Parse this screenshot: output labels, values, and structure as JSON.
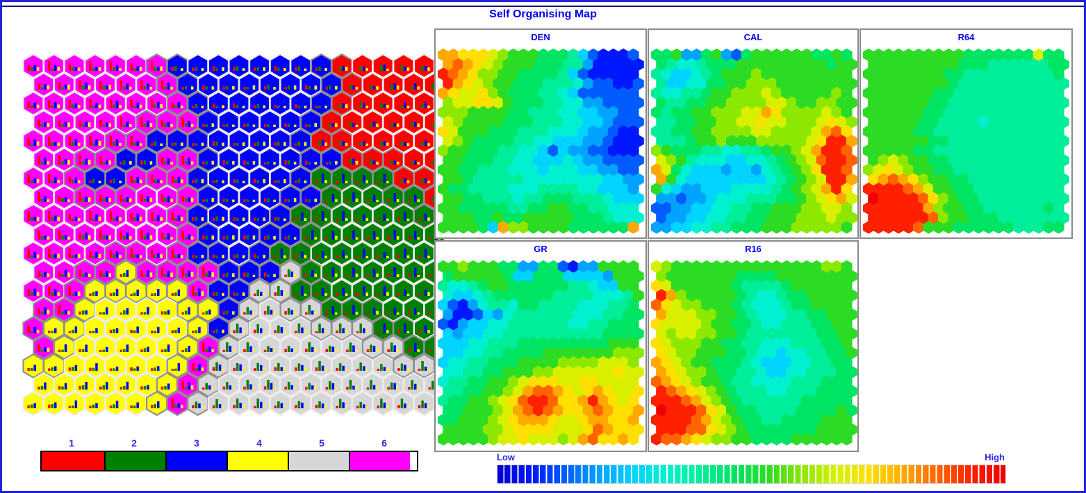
{
  "window": {
    "title": "Self Organising Map"
  },
  "chart_data": {
    "type": "heatmap",
    "title": "Self Organising Map",
    "grid": {
      "cols": 20,
      "rows": 19,
      "layout": "hex-odd-r"
    },
    "cluster_map": {
      "clusters": [
        {
          "id": "1",
          "label": "1",
          "color": "#ff0000"
        },
        {
          "id": "2",
          "label": "2",
          "color": "#008000"
        },
        {
          "id": "3",
          "label": "3",
          "color": "#0000ff"
        },
        {
          "id": "4",
          "label": "4",
          "color": "#ffff00"
        },
        {
          "id": "5",
          "label": "5",
          "color": "#d6d6d6"
        },
        {
          "id": "6",
          "label": "6",
          "color": "#ff00ff"
        }
      ],
      "rows": [
        "66666663333333311111",
        "66666663333333311111",
        "66666666333333311111",
        "66666666333333111111",
        "66666633333333111111",
        "66663366333333311111",
        "66633666333333222211",
        "66666666333333222221",
        "66666666333332222222",
        "66666666333332222222",
        "66666666333322222222",
        "66664666633352222222",
        "66644444633552222222",
        "66444444435555222222",
        "64444444435555555222",
        "64444444655555555522",
        "44444444655555555555",
        "44444446555555555555",
        "44444446555555555555"
      ]
    },
    "glyph": {
      "bar_colors": [
        "#ff0000",
        "#008000",
        "#0000ff",
        "#ffff00"
      ],
      "bar_profiles": {
        "1": [
          0.25,
          0.5,
          0.55,
          0.35
        ],
        "2": [
          0.3,
          0.2,
          0.95,
          0.3
        ],
        "3": [
          0.4,
          0.4,
          0.2,
          0.35
        ],
        "4": [
          0.3,
          0.35,
          0.65,
          0.2
        ],
        "5": [
          0.3,
          0.95,
          0.55,
          0.25
        ],
        "6": [
          0.95,
          0.35,
          0.6,
          0.4
        ]
      }
    },
    "component_planes": [
      {
        "name": "DEN",
        "rows": [
          "ccbbba98887776421112",
          "cdcba988877766311111",
          "edcb9988777764211111",
          "ecba9887776665322112",
          "cbaab987776654222222",
          "9aabba87776655332222",
          "99988887766655443322",
          "a9888877766655443222",
          "ba888777666555433211",
          "a9877776655444332111",
          "98877766554243322111",
          "88777665544454332222",
          "88776665554555443322",
          "88766666555555554433",
          "87766665556666554443",
          "88776665667776665444",
          "88777776677887766555",
          "88877877888887776555",
          "888874c998888777777c"
        ]
      },
      {
        "name": "CAL",
        "rows": [
          "77833783278888887787",
          "76556777888888888788",
          "65445678889888888888",
          "64455778899988888888",
          "65566788999a98888898",
          "76677889999aa9889988",
          "767788999aacb9999a98",
          "66778899aabaa999aba9",
          "6677889999aa9999acdb",
          "666788988899999abeec",
          "987776655667889aceed",
          "a98655544556789adeed",
          "ca75444344356789beed",
          "c854444444456789aeec",
          "8543344455556789aceb",
          "3323345556667789abca",
          "22334455667788899aa9",
          "23344556677888999a99",
          "33445566777888999998"
        ]
      },
      {
        "name": "R64",
        "rows": [
          "88888888887777777a77",
          "88888888877766666677",
          "88888888776666666667",
          "88888888766666666666",
          "88888887766666666666",
          "88888877666666666666",
          "88888877666666666666",
          "88888776666566666666",
          "88888776666666666666",
          "88888877666666666666",
          "88888776666666666666",
          "89a98877666666666666",
          "9aba9887766666666666",
          "bcdcb988776666666666",
          "eeeedca8877666666666",
          "feeeedb9877666666666",
          "eeeeeec9887766666676",
          "eeeeeed9887776666666",
          "eeeeed88877777766677"
        ]
      },
      {
        "name": "GR",
        "rows": [
          "88988877337721338888",
          "78888874477744443888",
          "65567887777776654488",
          "54456777777666655568",
          "42135665776666555667",
          "31124356666665556677",
          "21344556666665566777",
          "43445566666666667777",
          "44455666777777777888",
          "44556677778888888999",
          "4556677788889999aaa9",
          "55667788899aaaaaabaa",
          "56677889abbbaabbaaaa",
          "6677889acddcbabcbaab",
          "677889abdeedbbcecbab",
          "778889acdedcbbcdcbbc",
          "778889abcccbaabccbbc",
          "888899abbbbaaabdcbbb",
          "888889aabaaa9acdbbcb"
        ]
      },
      {
        "name": "R16",
        "rows": [
          "a9888888888888888998",
          "98888888777788888888",
          "ba888888766667888888",
          "ec988888765567788888",
          "dba99888765556778888",
          "caaa9988765556677888",
          "baaaa988776556667788",
          "a9aa9988766666667788",
          "ba999887766555666778",
          "ba998887765545566778",
          "cba98877765444556677",
          "cba99877665445566677",
          "dcba9887665555666777",
          "edcba987666556667777",
          "eeedca98766666677777",
          "feeedba8776666777787",
          "eeeedca9877667777888",
          "eeeddba9877777778888",
          "eddcba99887777888888"
        ]
      }
    ],
    "palette": [
      "#0000d0",
      "#0018ff",
      "#005cff",
      "#00a4ff",
      "#00d4ff",
      "#00f0d0",
      "#00ee9a",
      "#00e464",
      "#2cdc24",
      "#8ce800",
      "#d8f000",
      "#ffe000",
      "#ffa800",
      "#ff6400",
      "#ff2000",
      "#ee0000"
    ],
    "colorbar": {
      "low_label": "Low",
      "high_label": "High"
    }
  }
}
